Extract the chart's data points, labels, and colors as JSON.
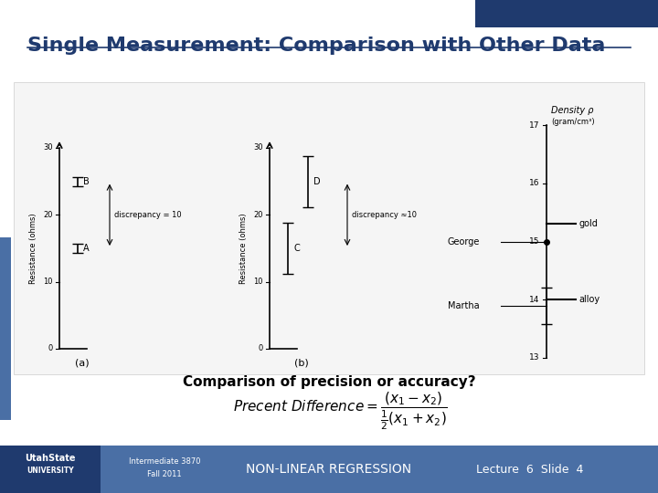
{
  "title": "Single Measurement: Comparison with Other Data",
  "title_color": "#1F3A6E",
  "bg_color": "#FFFFFF",
  "footer_bg": "#4A6FA5",
  "footer_dark_bg": "#1F3A6E",
  "footer_text_left1": "Intermediate 3870",
  "footer_text_left2": "Fall 2011",
  "footer_text_center": "NON-LINEAR REGRESSION",
  "footer_text_right": "Lecture  6  Slide  4",
  "blue_bar_color": "#1F3A6E",
  "accent_blue": "#4A6FA5",
  "subtitle1": "Comparison of precision or accuracy?",
  "tick_vals_a": [
    0,
    10,
    20,
    30
  ],
  "tick_vals_b": [
    0,
    10,
    20,
    30
  ],
  "tick_vals_c": [
    13,
    14,
    15,
    16,
    17
  ],
  "val_A": 15,
  "val_B": 25,
  "val_C": 15,
  "val_D": 25,
  "val_G": 15,
  "val_M": 13.9,
  "val_gold": 15.3,
  "val_alloy": 14.0
}
